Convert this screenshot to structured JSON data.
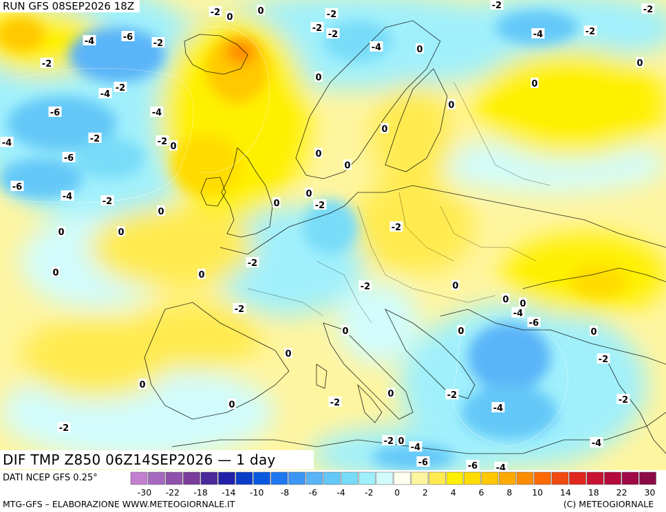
{
  "header": {
    "run": "RUN GFS 08SEP2026 18Z",
    "field": "DIF TMP Z850 06Z14SEP2026 — 1 day"
  },
  "footer": {
    "source": "DATI NCEP GFS 0.25°",
    "credit_left": "MTG-GFS – ELABORAZIONE WWW.METEOGIORNALE.IT",
    "credit_right": "(C) METEOGIORNALE"
  },
  "legend": {
    "colors": [
      "#c27fd0",
      "#a569c0",
      "#8e52ad",
      "#7a3d9a",
      "#4a2a9a",
      "#2020a8",
      "#0a3cc8",
      "#0a5ae0",
      "#1e78f0",
      "#3c96f5",
      "#5ab4f8",
      "#64c8f8",
      "#78dcf8",
      "#a0f0fc",
      "#d2fcfc",
      "#fffff0",
      "#fff5a0",
      "#ffeb50",
      "#fff000",
      "#ffdc00",
      "#ffc800",
      "#ffaa00",
      "#ff8c00",
      "#ff6a00",
      "#f04a10",
      "#e02820",
      "#c81432",
      "#b40a3c",
      "#a00a46",
      "#8c0a46"
    ],
    "labels": [
      "-30",
      "-22",
      "-18",
      "-14",
      "-10",
      "-8",
      "-6",
      "-4",
      "-2",
      "0",
      "2",
      "4",
      "6",
      "8",
      "10",
      "14",
      "18",
      "22",
      "30"
    ]
  },
  "map_labels": [
    {
      "t": "-2"
    },
    {
      "t": "0"
    },
    {
      "t": "0"
    },
    {
      "t": "-2"
    },
    {
      "t": "-2"
    },
    {
      "t": "-2"
    },
    {
      "t": "-2"
    },
    {
      "t": "-4"
    },
    {
      "t": "-2"
    },
    {
      "t": "-2"
    },
    {
      "t": "-4"
    },
    {
      "t": "-6"
    },
    {
      "t": "-2"
    },
    {
      "t": "-4"
    },
    {
      "t": "0"
    },
    {
      "t": "0"
    },
    {
      "t": "-2"
    },
    {
      "t": "0"
    },
    {
      "t": "0"
    },
    {
      "t": "-4"
    },
    {
      "t": "-2"
    },
    {
      "t": "-6"
    },
    {
      "t": "-4"
    },
    {
      "t": "0"
    },
    {
      "t": "-4"
    },
    {
      "t": "-2"
    },
    {
      "t": "-2"
    },
    {
      "t": "0"
    },
    {
      "t": "0"
    },
    {
      "t": "-6"
    },
    {
      "t": "-6"
    },
    {
      "t": "-4"
    },
    {
      "t": "-2"
    },
    {
      "t": "0"
    },
    {
      "t": "0"
    },
    {
      "t": "0"
    },
    {
      "t": "-2"
    },
    {
      "t": "0"
    },
    {
      "t": "0"
    },
    {
      "t": "-2"
    },
    {
      "t": "0"
    },
    {
      "t": "0"
    },
    {
      "t": "-2"
    },
    {
      "t": "0"
    },
    {
      "t": "0"
    },
    {
      "t": "-2"
    },
    {
      "t": "-4"
    },
    {
      "t": "-6"
    },
    {
      "t": "0"
    },
    {
      "t": "0"
    },
    {
      "t": "0"
    },
    {
      "t": "0"
    },
    {
      "t": "-2"
    },
    {
      "t": "0"
    },
    {
      "t": "0"
    },
    {
      "t": "0"
    },
    {
      "t": "-2"
    },
    {
      "t": "-4"
    },
    {
      "t": "-2"
    },
    {
      "t": "0"
    },
    {
      "t": "-2"
    },
    {
      "t": "-4"
    },
    {
      "t": "-6"
    },
    {
      "t": "-6"
    },
    {
      "t": "-4"
    },
    {
      "t": "0"
    },
    {
      "t": "0"
    },
    {
      "t": "-2"
    },
    {
      "t": "-2"
    },
    {
      "t": "-4"
    },
    {
      "t": "-2"
    },
    {
      "t": "0"
    }
  ]
}
